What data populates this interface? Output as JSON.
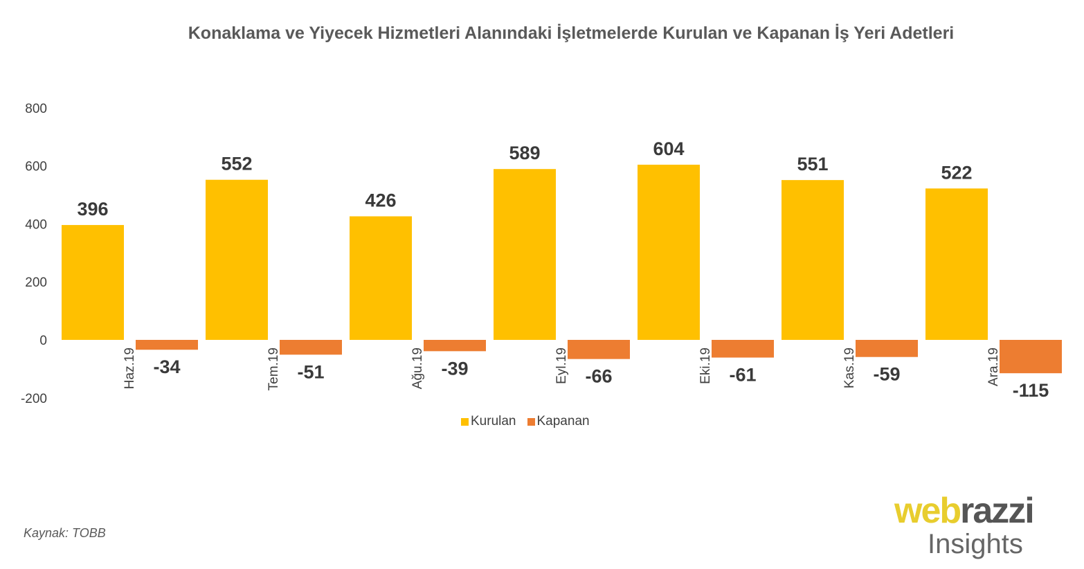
{
  "chart_data": {
    "type": "bar",
    "title": "Konaklama ve Yiyecek Hizmetleri Alanındaki İşletmelerde Kurulan ve Kapanan İş Yeri Adetleri",
    "categories": [
      "Haz.19",
      "Tem.19",
      "Ağu.19",
      "Eyl.19",
      "Eki.19",
      "Kas.19",
      "Ara.19"
    ],
    "series": [
      {
        "name": "Kurulan",
        "color": "#FFC000",
        "values": [
          396,
          552,
          426,
          589,
          604,
          551,
          522
        ]
      },
      {
        "name": "Kapanan",
        "color": "#ED7D31",
        "values": [
          -34,
          -51,
          -39,
          -66,
          -61,
          -59,
          -115
        ]
      }
    ],
    "ylim": [
      -200,
      800
    ],
    "yticks": [
      800,
      600,
      400,
      200,
      0,
      -200
    ],
    "grid": false,
    "legend": "bottom"
  },
  "source": "Kaynak: TOBB",
  "logo": {
    "web": "web",
    "razzi": "razzi",
    "insights": "Insights"
  },
  "colors": {
    "web": "#E8CD2E",
    "razzi": "#555555"
  }
}
